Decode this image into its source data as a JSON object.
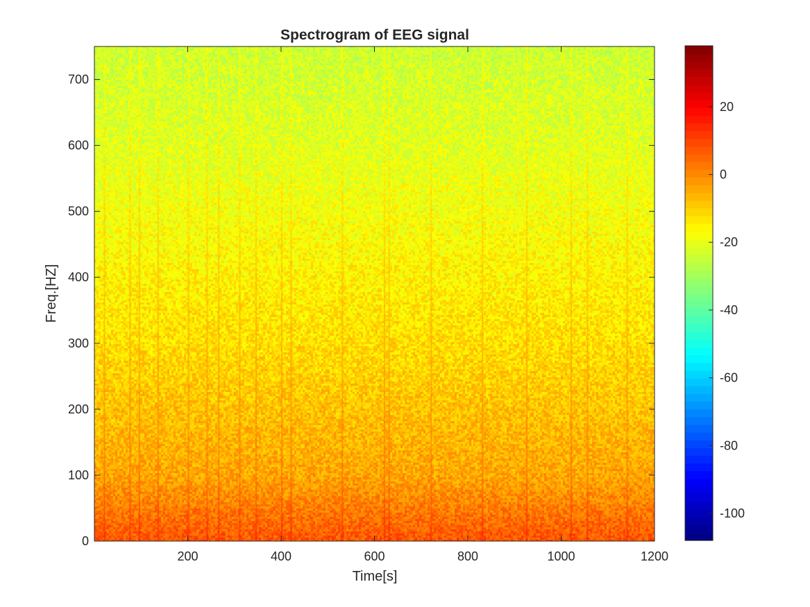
{
  "chart_data": {
    "type": "heatmap",
    "title": "Spectrogram of EEG signal",
    "xlabel": "Time[s]",
    "ylabel": "Freq.[HZ]",
    "xlim": [
      0,
      1200
    ],
    "ylim": [
      0,
      750
    ],
    "xticks": [
      200,
      400,
      600,
      800,
      1000,
      1200
    ],
    "yticks": [
      0,
      100,
      200,
      300,
      400,
      500,
      600,
      700
    ],
    "colormap": "jet",
    "clim": [
      -108,
      38
    ],
    "colorbar_ticks": [
      20,
      0,
      -20,
      -40,
      -60,
      -80,
      -100
    ],
    "grid": false,
    "power_profile_db": [
      {
        "freq": 0,
        "db": 8
      },
      {
        "freq": 50,
        "db": 2
      },
      {
        "freq": 100,
        "db": -4
      },
      {
        "freq": 200,
        "db": -8
      },
      {
        "freq": 300,
        "db": -12
      },
      {
        "freq": 400,
        "db": -15
      },
      {
        "freq": 500,
        "db": -18
      },
      {
        "freq": 600,
        "db": -21
      },
      {
        "freq": 700,
        "db": -23
      },
      {
        "freq": 750,
        "db": -24
      }
    ],
    "vertical_artifact_times": [
      20,
      75,
      95,
      135,
      200,
      240,
      265,
      310,
      345,
      400,
      420,
      530,
      620,
      630,
      720,
      830,
      925,
      1020,
      1055,
      1140
    ]
  }
}
